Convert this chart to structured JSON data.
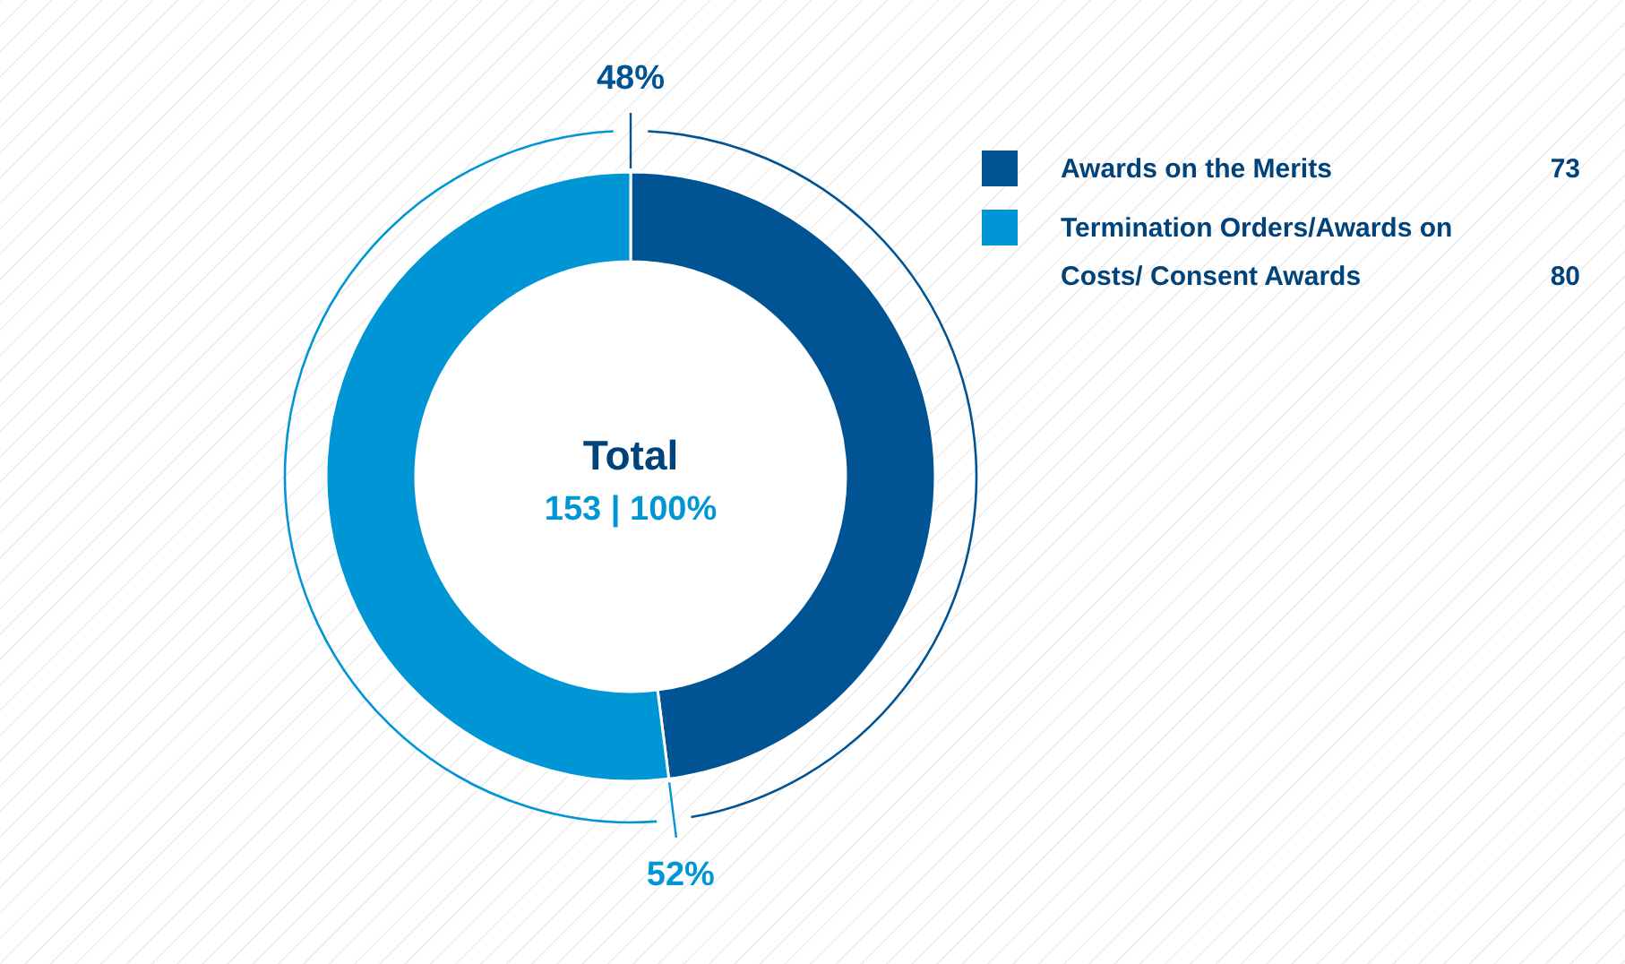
{
  "chart_data": {
    "type": "donut",
    "categories": [
      "Awards on the Merits",
      "Termination Orders/Awards on Costs/ Consent Awards"
    ],
    "values": [
      48,
      52
    ],
    "colors": [
      "#005493",
      "#0096d6"
    ],
    "value_labels": [
      "48%",
      "52%"
    ],
    "legend": "top right",
    "annotations": [
      "Total",
      "153 | 100%",
      "73",
      "80"
    ]
  }
}
